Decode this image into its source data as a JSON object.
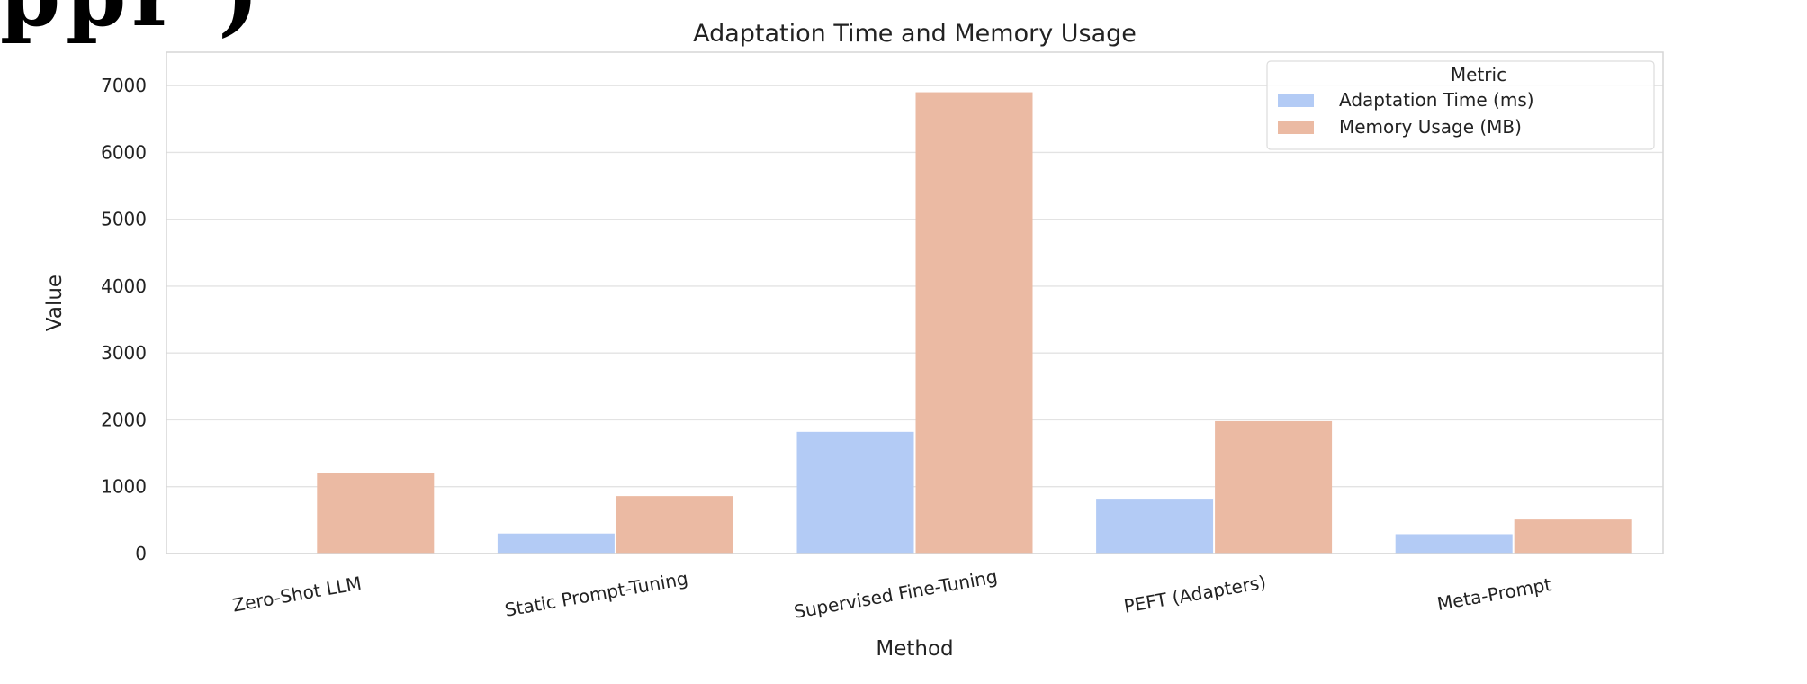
{
  "page": {
    "cropped_heading_fragment": "ppr     )"
  },
  "chart_data": {
    "type": "bar",
    "title": "Adaptation Time and Memory Usage",
    "xlabel": "Method",
    "ylabel": "Value",
    "ylim": [
      0,
      7500
    ],
    "yticks": [
      0,
      1000,
      2000,
      3000,
      4000,
      5000,
      6000,
      7000
    ],
    "grid": true,
    "legend_position": "top-right",
    "legend_title": "Metric",
    "categories": [
      "Zero-Shot LLM",
      "Static Prompt-Tuning",
      "Supervised Fine-Tuning",
      "PEFT (Adapters)",
      "Meta-Prompt"
    ],
    "series": [
      {
        "name": "Adaptation Time (ms)",
        "color": "#b3cbf5",
        "values": [
          0,
          300,
          1820,
          820,
          290
        ]
      },
      {
        "name": "Memory Usage (MB)",
        "color": "#ebbaa3",
        "values": [
          1200,
          860,
          6900,
          1980,
          510
        ]
      }
    ]
  }
}
